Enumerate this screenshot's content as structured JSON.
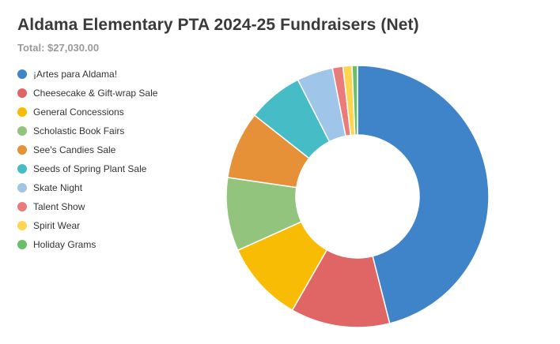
{
  "chart_data": {
    "type": "pie",
    "title": "Aldama Elementary PTA 2024-25 Fundraisers (Net)",
    "subtitle": "Total: $27,030.00",
    "legend_position": "left",
    "categories": [
      "¡Artes para Aldama!",
      "Cheesecake & Gift-wrap Sale",
      "General Concessions",
      "Scholastic Book Fairs",
      "See's Candies Sale",
      "Seeds of Spring Plant Sale",
      "Skate Night",
      "Talent Show",
      "Spirit Wear",
      "Holiday Grams"
    ],
    "values": [
      12450,
      3300,
      2700,
      2450,
      2250,
      1850,
      1200,
      350,
      300,
      180
    ],
    "colors": [
      "#3f84c8",
      "#e06666",
      "#f9bc05",
      "#93c47d",
      "#e69138",
      "#46bdc6",
      "#9fc5e8",
      "#ea7b7b",
      "#ffd54f",
      "#6abf69"
    ]
  }
}
